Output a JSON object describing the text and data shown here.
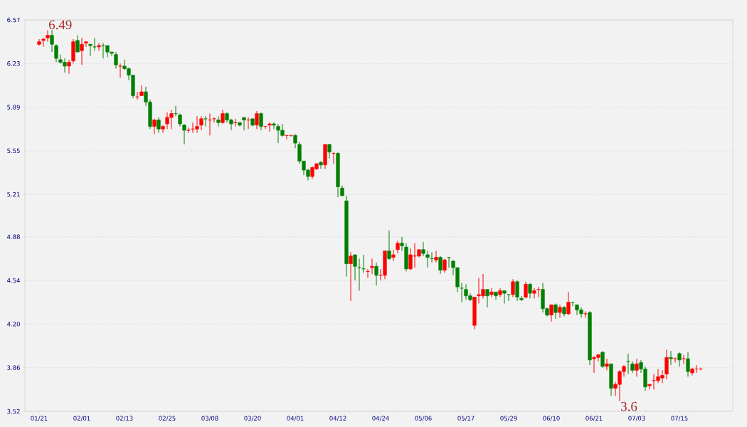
{
  "chart_data": {
    "type": "candlestick",
    "categories": [
      "01/21",
      null,
      null,
      null,
      null,
      null,
      null,
      null,
      null,
      null,
      "02/01",
      null,
      null,
      null,
      null,
      null,
      null,
      null,
      null,
      null,
      "02/13",
      null,
      null,
      null,
      null,
      null,
      null,
      null,
      null,
      null,
      "02/25",
      null,
      null,
      null,
      null,
      null,
      null,
      null,
      null,
      null,
      "03/08",
      null,
      null,
      null,
      null,
      null,
      null,
      null,
      null,
      null,
      "03/20",
      null,
      null,
      null,
      null,
      null,
      null,
      null,
      null,
      null,
      "04/01",
      null,
      null,
      null,
      null,
      null,
      null,
      null,
      null,
      null,
      "04/12",
      null,
      null,
      null,
      null,
      null,
      null,
      null,
      null,
      null,
      "04/24",
      null,
      null,
      null,
      null,
      null,
      null,
      null,
      null,
      null,
      "05/06",
      null,
      null,
      null,
      null,
      null,
      null,
      null,
      null,
      null,
      "05/17",
      null,
      null,
      null,
      null,
      null,
      null,
      null,
      null,
      null,
      "05/29",
      null,
      null,
      null,
      null,
      null,
      null,
      null,
      null,
      null,
      "06/10",
      null,
      null,
      null,
      null,
      null,
      null,
      null,
      null,
      null,
      "06/21",
      null,
      null,
      null,
      null,
      null,
      null,
      null,
      null,
      null,
      "07/03",
      null,
      null,
      null,
      null,
      null,
      null,
      null,
      null,
      null,
      "07/15",
      null,
      null,
      null,
      null,
      null
    ],
    "ohlc": [
      [
        6.38,
        6.42,
        6.37,
        6.4
      ],
      [
        6.41,
        6.43,
        6.36,
        6.42
      ],
      [
        6.43,
        6.49,
        6.4,
        6.45
      ],
      [
        6.45,
        6.49,
        6.32,
        6.38
      ],
      [
        6.37,
        6.38,
        6.24,
        6.27
      ],
      [
        6.26,
        6.3,
        6.23,
        6.24
      ],
      [
        6.24,
        6.27,
        6.16,
        6.21
      ],
      [
        6.21,
        6.26,
        6.15,
        6.24
      ],
      [
        6.25,
        6.42,
        6.23,
        6.4
      ],
      [
        6.41,
        6.45,
        6.32,
        6.32
      ],
      [
        6.33,
        6.43,
        6.22,
        6.38
      ],
      [
        6.39,
        6.4,
        6.36,
        6.4
      ],
      [
        6.38,
        6.38,
        6.29,
        6.37
      ],
      [
        6.36,
        6.43,
        6.33,
        6.36
      ],
      [
        6.36,
        6.39,
        6.33,
        6.37
      ],
      [
        6.37,
        6.39,
        6.27,
        6.37
      ],
      [
        6.37,
        6.37,
        6.28,
        6.32
      ],
      [
        6.32,
        6.32,
        6.29,
        6.31
      ],
      [
        6.3,
        6.32,
        6.19,
        6.22
      ],
      [
        6.21,
        6.23,
        6.12,
        6.21
      ],
      [
        6.21,
        6.26,
        6.18,
        6.19
      ],
      [
        6.19,
        6.2,
        6.1,
        6.14
      ],
      [
        6.14,
        6.14,
        5.96,
        5.98
      ],
      [
        5.97,
        6.01,
        5.95,
        5.97
      ],
      [
        5.98,
        6.06,
        5.98,
        6.01
      ],
      [
        6.01,
        6.05,
        5.9,
        5.93
      ],
      [
        5.93,
        5.95,
        5.72,
        5.74
      ],
      [
        5.74,
        5.8,
        5.68,
        5.79
      ],
      [
        5.79,
        5.81,
        5.69,
        5.72
      ],
      [
        5.72,
        5.75,
        5.69,
        5.74
      ],
      [
        5.76,
        5.85,
        5.72,
        5.81
      ],
      [
        5.81,
        5.87,
        5.72,
        5.84
      ],
      [
        5.84,
        5.9,
        5.82,
        5.84
      ],
      [
        5.83,
        5.84,
        5.74,
        5.76
      ],
      [
        5.75,
        5.76,
        5.6,
        5.71
      ],
      [
        5.71,
        5.73,
        5.69,
        5.71
      ],
      [
        5.72,
        5.77,
        5.69,
        5.72
      ],
      [
        5.72,
        5.82,
        5.69,
        5.74
      ],
      [
        5.75,
        5.82,
        5.71,
        5.8
      ],
      [
        5.8,
        5.82,
        5.74,
        5.8
      ],
      [
        5.79,
        5.84,
        5.67,
        5.79
      ],
      [
        5.8,
        5.81,
        5.77,
        5.8
      ],
      [
        5.79,
        5.82,
        5.74,
        5.77
      ],
      [
        5.77,
        5.87,
        5.76,
        5.84
      ],
      [
        5.84,
        5.85,
        5.77,
        5.79
      ],
      [
        5.79,
        5.8,
        5.71,
        5.76
      ],
      [
        5.77,
        5.8,
        5.74,
        5.77
      ],
      [
        5.77,
        5.77,
        5.74,
        5.75
      ],
      [
        5.81,
        5.81,
        5.71,
        5.79
      ],
      [
        5.79,
        5.81,
        5.72,
        5.79
      ],
      [
        5.8,
        5.8,
        5.74,
        5.75
      ],
      [
        5.75,
        5.86,
        5.72,
        5.84
      ],
      [
        5.84,
        5.85,
        5.71,
        5.74
      ],
      [
        5.74,
        5.74,
        5.72,
        5.74
      ],
      [
        5.75,
        5.77,
        5.7,
        5.76
      ],
      [
        5.76,
        5.77,
        5.72,
        5.75
      ],
      [
        5.74,
        5.76,
        5.61,
        5.71
      ],
      [
        5.71,
        5.76,
        5.66,
        5.67
      ],
      [
        5.67,
        5.67,
        5.64,
        5.67
      ],
      [
        5.67,
        5.67,
        5.66,
        5.67
      ],
      [
        5.67,
        5.68,
        5.57,
        5.61
      ],
      [
        5.6,
        5.62,
        5.45,
        5.47
      ],
      [
        5.47,
        5.47,
        5.36,
        5.4
      ],
      [
        5.4,
        5.41,
        5.32,
        5.35
      ],
      [
        5.35,
        5.43,
        5.33,
        5.42
      ],
      [
        5.41,
        5.45,
        5.4,
        5.45
      ],
      [
        5.46,
        5.47,
        5.41,
        5.44
      ],
      [
        5.44,
        5.6,
        5.41,
        5.6
      ],
      [
        5.6,
        5.6,
        5.49,
        5.54
      ],
      [
        5.53,
        5.54,
        5.45,
        5.53
      ],
      [
        5.53,
        5.54,
        5.19,
        5.27
      ],
      [
        5.26,
        5.28,
        5.2,
        5.2
      ],
      [
        5.16,
        5.2,
        4.57,
        4.67
      ],
      [
        4.67,
        4.76,
        4.38,
        4.73
      ],
      [
        4.74,
        4.74,
        4.54,
        4.65
      ],
      [
        4.64,
        4.71,
        4.46,
        4.64
      ],
      [
        4.63,
        4.74,
        4.6,
        4.63
      ],
      [
        4.61,
        4.63,
        4.56,
        4.61
      ],
      [
        4.64,
        4.71,
        4.59,
        4.65
      ],
      [
        4.65,
        4.68,
        4.5,
        4.58
      ],
      [
        4.58,
        4.63,
        4.54,
        4.58
      ],
      [
        4.58,
        4.77,
        4.55,
        4.77
      ],
      [
        4.77,
        4.93,
        4.7,
        4.71
      ],
      [
        4.72,
        4.78,
        4.69,
        4.74
      ],
      [
        4.78,
        4.85,
        4.75,
        4.83
      ],
      [
        4.83,
        4.88,
        4.77,
        4.81
      ],
      [
        4.8,
        4.83,
        4.61,
        4.63
      ],
      [
        4.63,
        4.79,
        4.62,
        4.74
      ],
      [
        4.73,
        4.83,
        4.64,
        4.73
      ],
      [
        4.73,
        4.78,
        4.72,
        4.78
      ],
      [
        4.78,
        4.84,
        4.73,
        4.75
      ],
      [
        4.74,
        4.77,
        4.64,
        4.72
      ],
      [
        4.71,
        4.76,
        4.68,
        4.71
      ],
      [
        4.7,
        4.77,
        4.68,
        4.72
      ],
      [
        4.72,
        4.73,
        4.59,
        4.62
      ],
      [
        4.62,
        4.71,
        4.6,
        4.7
      ],
      [
        4.72,
        4.72,
        4.64,
        4.72
      ],
      [
        4.69,
        4.7,
        4.58,
        4.64
      ],
      [
        4.64,
        4.64,
        4.45,
        4.49
      ],
      [
        4.48,
        4.52,
        4.37,
        4.48
      ],
      [
        4.47,
        4.51,
        4.39,
        4.42
      ],
      [
        4.42,
        4.44,
        4.38,
        4.39
      ],
      [
        4.19,
        4.41,
        4.16,
        4.41
      ],
      [
        4.42,
        4.56,
        4.36,
        4.43
      ],
      [
        4.42,
        4.59,
        4.4,
        4.47
      ],
      [
        4.47,
        4.47,
        4.33,
        4.42
      ],
      [
        4.43,
        4.48,
        4.41,
        4.45
      ],
      [
        4.45,
        4.45,
        4.39,
        4.42
      ],
      [
        4.43,
        4.48,
        4.41,
        4.46
      ],
      [
        4.46,
        4.46,
        4.36,
        4.44
      ],
      [
        4.43,
        4.43,
        4.38,
        4.43
      ],
      [
        4.43,
        4.55,
        4.41,
        4.53
      ],
      [
        4.53,
        4.54,
        4.38,
        4.41
      ],
      [
        4.4,
        4.42,
        4.38,
        4.39
      ],
      [
        4.41,
        4.53,
        4.4,
        4.51
      ],
      [
        4.51,
        4.52,
        4.4,
        4.44
      ],
      [
        4.44,
        4.48,
        4.4,
        4.46
      ],
      [
        4.47,
        4.49,
        4.41,
        4.47
      ],
      [
        4.47,
        4.52,
        4.29,
        4.32
      ],
      [
        4.32,
        4.33,
        4.26,
        4.27
      ],
      [
        4.27,
        4.35,
        4.22,
        4.35
      ],
      [
        4.35,
        4.36,
        4.24,
        4.29
      ],
      [
        4.29,
        4.35,
        4.25,
        4.33
      ],
      [
        4.33,
        4.34,
        4.26,
        4.28
      ],
      [
        4.28,
        4.45,
        4.27,
        4.37
      ],
      [
        4.37,
        4.37,
        4.34,
        4.37
      ],
      [
        4.35,
        4.35,
        4.27,
        4.31
      ],
      [
        4.31,
        4.33,
        4.25,
        4.28
      ],
      [
        4.28,
        4.3,
        4.25,
        4.28
      ],
      [
        4.29,
        4.3,
        3.88,
        3.92
      ],
      [
        3.93,
        3.95,
        3.82,
        3.94
      ],
      [
        3.94,
        3.97,
        3.91,
        3.96
      ],
      [
        3.98,
        3.99,
        3.86,
        3.87
      ],
      [
        3.87,
        3.93,
        3.84,
        3.89
      ],
      [
        3.89,
        3.89,
        3.64,
        3.7
      ],
      [
        3.7,
        3.75,
        3.64,
        3.73
      ],
      [
        3.73,
        3.84,
        3.6,
        3.83
      ],
      [
        3.83,
        3.88,
        3.79,
        3.87
      ],
      [
        3.91,
        3.97,
        3.81,
        3.91
      ],
      [
        3.89,
        3.91,
        3.82,
        3.84
      ],
      [
        3.84,
        3.93,
        3.79,
        3.89
      ],
      [
        3.9,
        3.92,
        3.82,
        3.85
      ],
      [
        3.85,
        3.87,
        3.68,
        3.71
      ],
      [
        3.72,
        3.73,
        3.69,
        3.73
      ],
      [
        3.76,
        3.81,
        3.69,
        3.76
      ],
      [
        3.76,
        3.85,
        3.74,
        3.79
      ],
      [
        3.78,
        3.84,
        3.74,
        3.8
      ],
      [
        3.81,
        4.0,
        3.77,
        3.94
      ],
      [
        3.94,
        3.99,
        3.88,
        3.93
      ],
      [
        3.93,
        3.94,
        3.9,
        3.93
      ],
      [
        3.97,
        3.98,
        3.87,
        3.92
      ],
      [
        3.93,
        3.96,
        3.89,
        3.93
      ],
      [
        3.93,
        3.98,
        3.79,
        3.83
      ],
      [
        3.82,
        3.86,
        3.8,
        3.85
      ],
      [
        3.85,
        3.88,
        3.82,
        3.85
      ],
      [
        3.85,
        3.86,
        3.84,
        3.85
      ]
    ],
    "colors": [
      "#ff0000",
      "#ff0000",
      "#ff0000",
      "#008000",
      "#008000",
      "#008000",
      "#008000",
      "#ff0000",
      "#ff0000",
      "#008000",
      "#ff0000",
      "#ff0000",
      "#008000",
      "#008000",
      "#ff0000",
      "#008000",
      "#008000",
      "#008000",
      "#008000",
      "#ff0000",
      "#008000",
      "#008000",
      "#008000",
      "#ff0000",
      "#ff0000",
      "#008000",
      "#008000",
      "#ff0000",
      "#008000",
      "#ff0000",
      "#ff0000",
      "#ff0000",
      "#008000",
      "#008000",
      "#008000",
      "#ff0000",
      "#ff0000",
      "#ff0000",
      "#ff0000",
      "#008000",
      "#ff0000",
      "#ff0000",
      "#008000",
      "#ff0000",
      "#008000",
      "#008000",
      "#ff0000",
      "#008000",
      "#008000",
      "#ff0000",
      "#008000",
      "#ff0000",
      "#008000",
      "#ff0000",
      "#ff0000",
      "#008000",
      "#008000",
      "#008000",
      "#ff0000",
      "#ff0000",
      "#008000",
      "#008000",
      "#008000",
      "#008000",
      "#ff0000",
      "#ff0000",
      "#008000",
      "#ff0000",
      "#008000",
      "#ff0000",
      "#008000",
      "#008000",
      "#008000",
      "#ff0000",
      "#008000",
      "#008000",
      "#008000",
      "#ff0000",
      "#ff0000",
      "#008000",
      "#ff0000",
      "#ff0000",
      "#008000",
      "#ff0000",
      "#ff0000",
      "#008000",
      "#008000",
      "#ff0000",
      "#ff0000",
      "#ff0000",
      "#008000",
      "#008000",
      "#008000",
      "#ff0000",
      "#008000",
      "#ff0000",
      "#008000",
      "#008000",
      "#008000",
      "#008000",
      "#008000",
      "#008000",
      "#ff0000",
      "#ff0000",
      "#ff0000",
      "#008000",
      "#ff0000",
      "#008000",
      "#ff0000",
      "#008000",
      "#008000",
      "#ff0000",
      "#008000",
      "#008000",
      "#ff0000",
      "#008000",
      "#ff0000",
      "#ff0000",
      "#008000",
      "#008000",
      "#ff0000",
      "#008000",
      "#ff0000",
      "#008000",
      "#ff0000",
      "#008000",
      "#008000",
      "#008000",
      "#ff0000",
      "#008000",
      "#ff0000",
      "#ff0000",
      "#008000",
      "#ff0000",
      "#008000",
      "#ff0000",
      "#ff0000",
      "#ff0000",
      "#008000",
      "#008000",
      "#ff0000",
      "#008000",
      "#008000",
      "#ff0000",
      "#ff0000",
      "#ff0000",
      "#ff0000",
      "#ff0000",
      "#008000",
      "#ff0000",
      "#008000",
      "#ff0000",
      "#008000",
      "#ff0000",
      "#ff0000",
      "#ff0000"
    ],
    "ylim": [
      3.52,
      6.57
    ],
    "yticks": [
      3.52,
      3.86,
      {
        "value": 4.2,
        "label": "4.20"
      },
      4.54,
      4.88,
      5.21,
      5.55,
      5.89,
      6.23,
      6.57
    ],
    "grid": "y",
    "annotations": [
      "6.49",
      "3.6"
    ]
  }
}
